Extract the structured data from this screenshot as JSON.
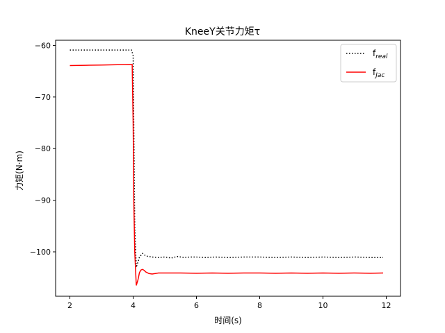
{
  "chart_data": {
    "type": "line",
    "title": "KneeY关节力矩τ",
    "xlabel": "时间(s)",
    "ylabel": "力矩(N·m)",
    "xlim": [
      1.55,
      12.45
    ],
    "ylim": [
      -108.6,
      -59.0
    ],
    "xticks": [
      2,
      4,
      6,
      8,
      10,
      12
    ],
    "xtick_labels": [
      "2",
      "4",
      "6",
      "8",
      "10",
      "12"
    ],
    "yticks": [
      -60,
      -70,
      -80,
      -90,
      -100
    ],
    "ytick_labels": [
      "−60",
      "−70",
      "−80",
      "−90",
      "−100"
    ],
    "grid": false,
    "legend": {
      "position": "top-right",
      "entries": [
        {
          "base": "f",
          "sub": "real"
        },
        {
          "base": "f",
          "sub": "Jac"
        }
      ]
    },
    "series": [
      {
        "name": "f_real",
        "color": "#000000",
        "style": "dotted",
        "x": [
          2.0,
          2.5,
          3.0,
          3.5,
          3.95,
          4.0,
          4.02,
          4.05,
          4.1,
          4.15,
          4.2,
          4.3,
          4.4,
          4.6,
          4.8,
          5.0,
          5.2,
          5.4,
          5.6,
          5.8,
          6.0,
          6.3,
          6.6,
          7.0,
          7.5,
          8.0,
          8.5,
          9.0,
          9.5,
          10.0,
          10.5,
          11.0,
          11.5,
          11.9
        ],
        "y": [
          -60.9,
          -60.9,
          -60.9,
          -60.9,
          -60.9,
          -62.0,
          -75.0,
          -95.0,
          -103.0,
          -102.0,
          -101.0,
          -100.3,
          -100.8,
          -101.0,
          -101.1,
          -101.0,
          -101.2,
          -100.9,
          -101.1,
          -101.0,
          -101.0,
          -101.1,
          -101.0,
          -101.1,
          -101.0,
          -101.0,
          -101.1,
          -101.0,
          -101.1,
          -101.0,
          -101.1,
          -101.0,
          -101.1,
          -101.1
        ]
      },
      {
        "name": "f_Jac",
        "color": "#ff0000",
        "style": "solid",
        "x": [
          2.0,
          2.5,
          3.0,
          3.5,
          3.97,
          4.0,
          4.02,
          4.05,
          4.1,
          4.15,
          4.2,
          4.25,
          4.3,
          4.35,
          4.4,
          4.5,
          4.6,
          4.7,
          4.8,
          5.0,
          5.5,
          6.0,
          6.5,
          7.0,
          7.5,
          8.0,
          8.5,
          9.0,
          9.5,
          10.0,
          10.5,
          11.0,
          11.5,
          11.9
        ],
        "y": [
          -63.9,
          -63.85,
          -63.8,
          -63.75,
          -63.7,
          -75.0,
          -90.0,
          -100.0,
          -106.5,
          -105.5,
          -104.0,
          -103.5,
          -103.4,
          -103.6,
          -103.9,
          -104.2,
          -104.3,
          -104.2,
          -104.1,
          -104.1,
          -104.1,
          -104.15,
          -104.1,
          -104.15,
          -104.1,
          -104.1,
          -104.15,
          -104.1,
          -104.15,
          -104.1,
          -104.15,
          -104.1,
          -104.15,
          -104.1
        ]
      }
    ]
  }
}
